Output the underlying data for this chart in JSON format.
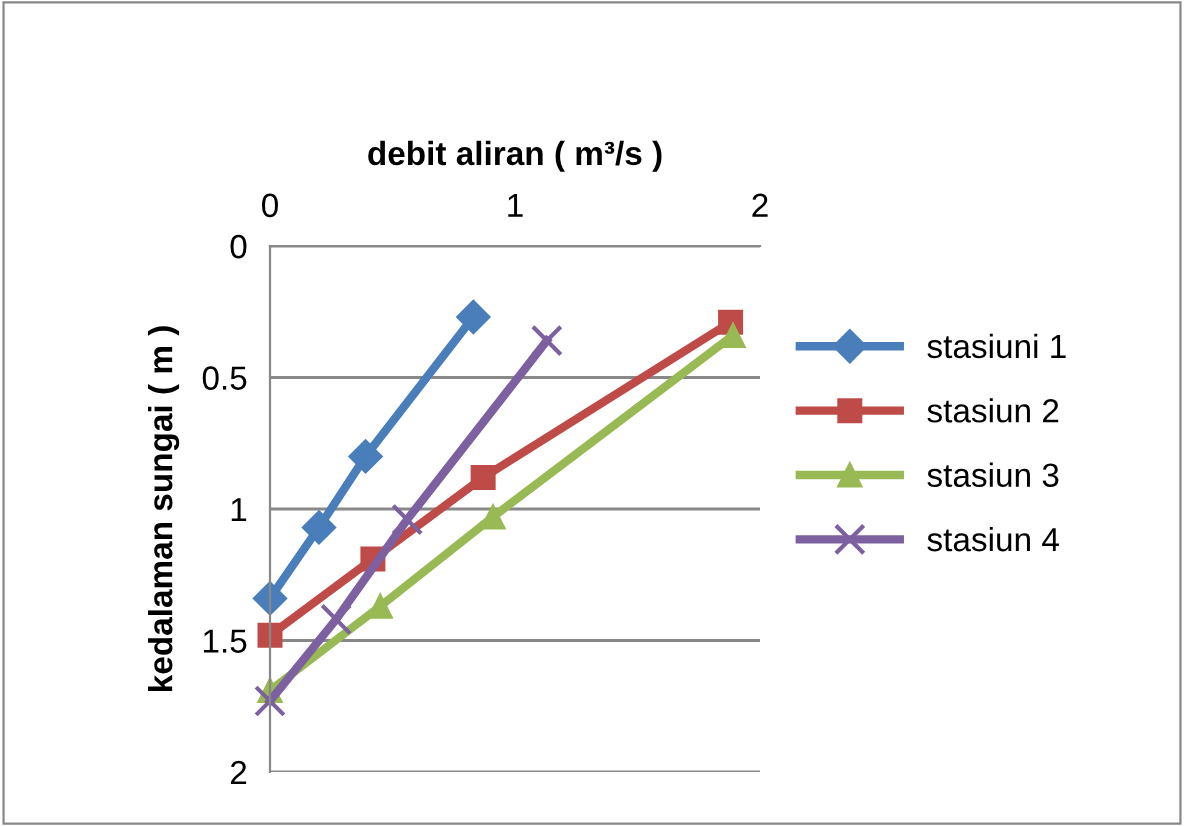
{
  "chart_data": {
    "type": "line",
    "xlabel": "debit aliran ( m³/s )",
    "ylabel": "kedalaman sungai ( m )",
    "xlim": [
      0,
      2
    ],
    "xticks": [
      0,
      1,
      2
    ],
    "ylim": [
      2,
      0
    ],
    "yticks": [
      0,
      0.5,
      1,
      1.5,
      2
    ],
    "grid": "y",
    "legend": "right",
    "series": [
      {
        "name": "stasiuni 1",
        "color": "#4a7ebb",
        "marker": "diamond",
        "x": [
          0,
          0.2,
          0.39,
          0.83
        ],
        "values": [
          1.34,
          1.07,
          0.8,
          0.27
        ]
      },
      {
        "name": "stasiun 2",
        "color": "#be4b48",
        "marker": "square",
        "x": [
          0,
          0.42,
          0.87,
          1.88
        ],
        "values": [
          1.48,
          1.19,
          0.88,
          0.29
        ]
      },
      {
        "name": "stasiun 3",
        "color": "#98b954",
        "marker": "triangle",
        "x": [
          0,
          0.45,
          0.91,
          1.89
        ],
        "values": [
          1.69,
          1.37,
          1.03,
          0.34
        ]
      },
      {
        "name": "stasiun 4",
        "color": "#7d60a0",
        "marker": "cross",
        "x": [
          0,
          0.27,
          0.56,
          1.13
        ],
        "values": [
          1.73,
          1.42,
          1.04,
          0.36
        ]
      }
    ]
  }
}
